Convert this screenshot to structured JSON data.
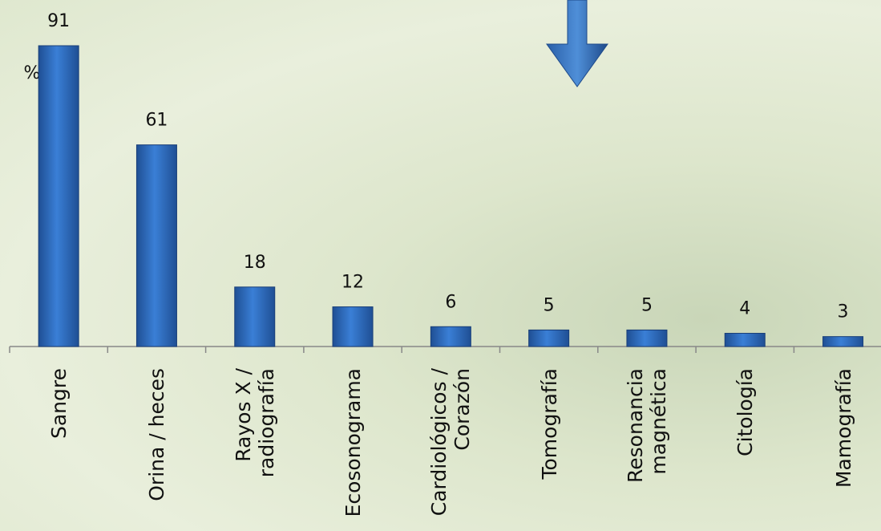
{
  "chart_data": {
    "type": "bar",
    "y_label": "%",
    "categories": [
      "Sangre",
      "Orina / heces",
      "Rayos X / radiografía",
      "Ecosonograma",
      "Cardiológicos / Corazón",
      "Tomografía",
      "Resonancia magnética",
      "Citología",
      "Mamografía"
    ],
    "values": [
      91,
      61,
      18,
      12,
      6,
      5,
      5,
      4,
      3
    ],
    "color": "#2f6cc0"
  }
}
